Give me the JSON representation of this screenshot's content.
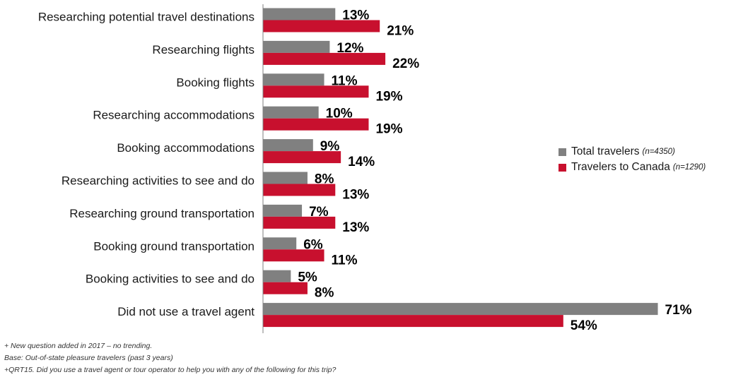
{
  "chart_data": {
    "type": "bar",
    "orientation": "horizontal",
    "categories": [
      "Researching potential travel destinations",
      "Researching flights",
      "Booking flights",
      "Researching accommodations",
      "Booking accommodations",
      "Researching activities to see and do",
      "Researching ground transportation",
      "Booking ground transportation",
      "Booking activities to see and do",
      "Did not use a travel agent"
    ],
    "series": [
      {
        "name": "Total travelers",
        "n_label": "(n=4350)",
        "color": "#808080",
        "values": [
          13,
          12,
          11,
          10,
          9,
          8,
          7,
          6,
          5,
          71
        ]
      },
      {
        "name": "Travelers to Canada",
        "n_label": "(n=1290)",
        "color": "#c8102e",
        "values": [
          21,
          22,
          19,
          19,
          14,
          13,
          13,
          11,
          8,
          54
        ]
      }
    ],
    "value_suffix": "%",
    "legend_position": "right",
    "grid": false
  },
  "footnotes": [
    "+ New question added in 2017 – no trending.",
    "Base: Out-of-state pleasure travelers (past 3 years)",
    "+QRT15. Did you use a travel agent or tour operator to help you with any of the following for this trip?"
  ]
}
